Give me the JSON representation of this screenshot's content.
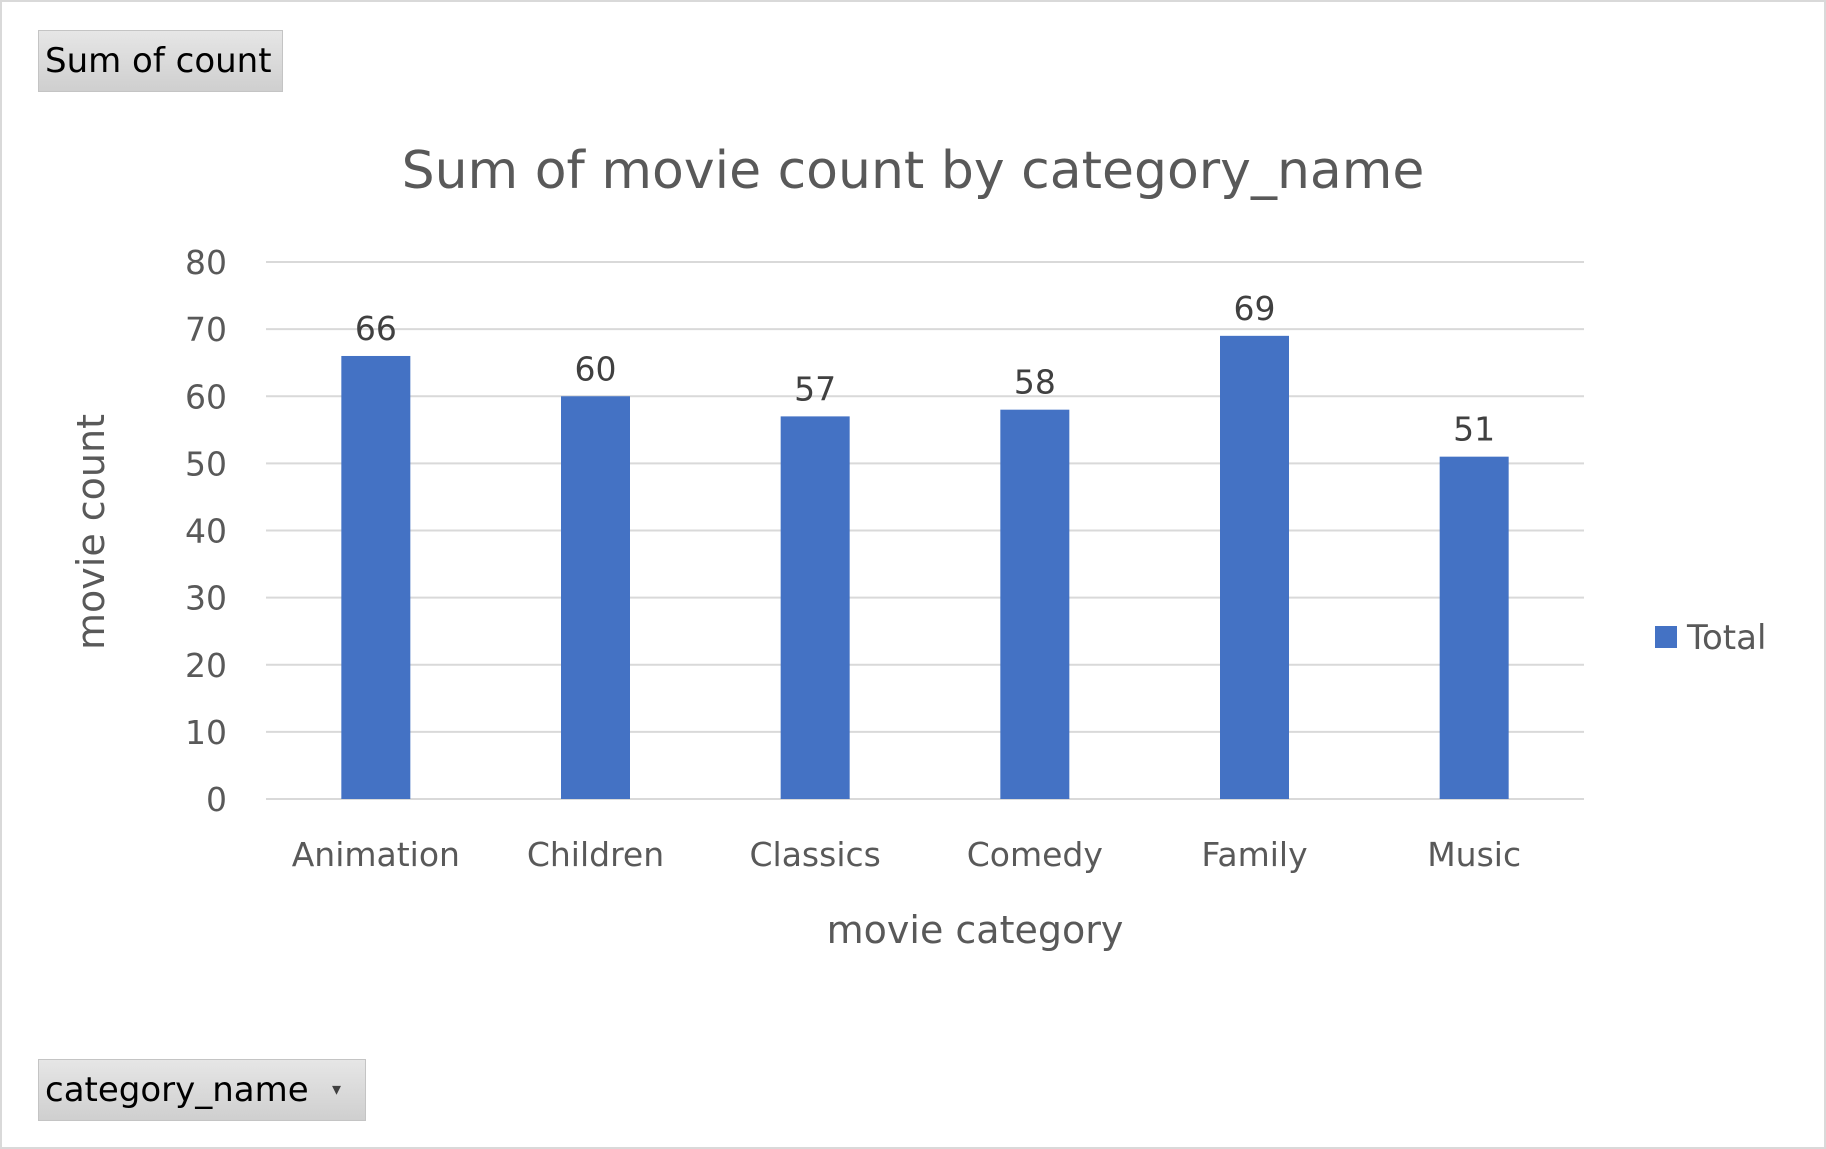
{
  "field_buttons": {
    "value_field": "Sum of count",
    "axis_field": "category_name"
  },
  "chart_data": {
    "type": "bar",
    "title": "Sum of movie count by category_name",
    "xlabel": "movie category",
    "ylabel": "movie count",
    "categories": [
      "Animation",
      "Children",
      "Classics",
      "Comedy",
      "Family",
      "Music"
    ],
    "series": [
      {
        "name": "Total",
        "values": [
          66,
          60,
          57,
          58,
          69,
          51
        ],
        "color": "#4472c4"
      }
    ],
    "ylim": [
      0,
      80
    ],
    "yticks": [
      0,
      10,
      20,
      30,
      40,
      50,
      60,
      70,
      80
    ],
    "data_labels": true,
    "grid": true,
    "legend": "right",
    "colors": {
      "gridline": "#d9d9d9",
      "text": "#595959",
      "bar": "#4472c4"
    }
  }
}
